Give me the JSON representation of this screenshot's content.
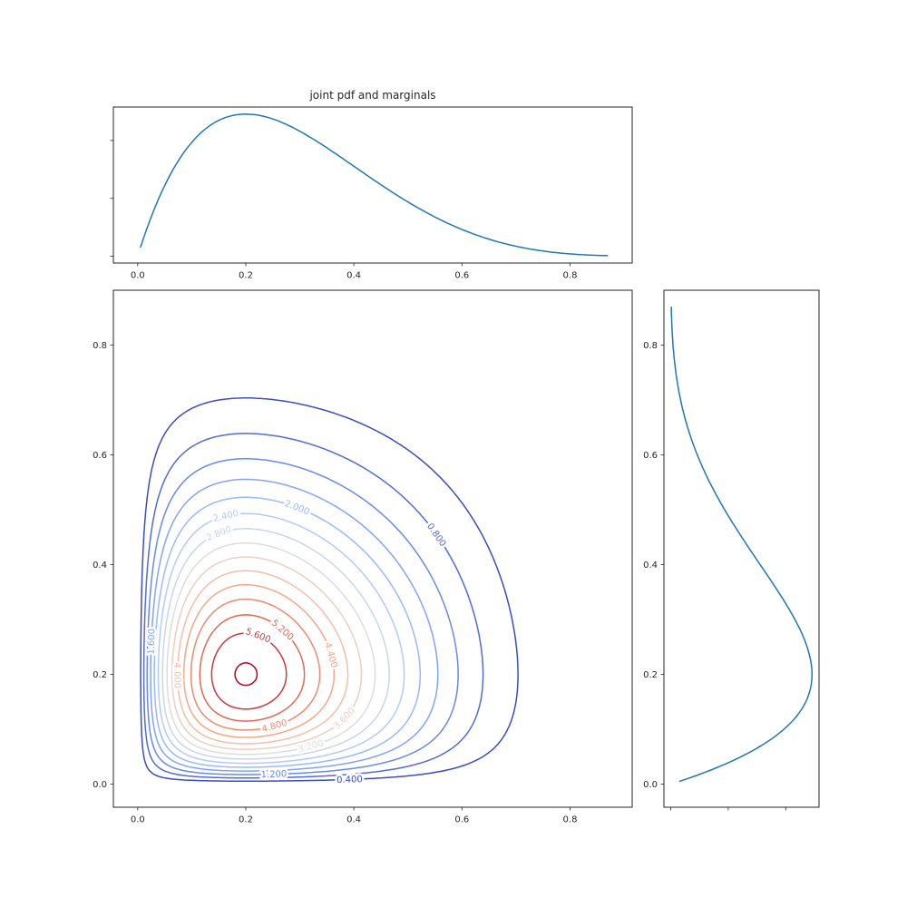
{
  "figure": {
    "background": "#ffffff",
    "text_color": "#262626",
    "frame_color": "#262626",
    "curve_color": "#1f77b4"
  },
  "chart_data": [
    {
      "id": "top_marginal",
      "type": "line",
      "role": "marginal pdf of x",
      "title": "joint pdf and marginals",
      "curve": {
        "kind": "beta_pdf",
        "a": 2,
        "b": 5,
        "norm": 30,
        "x_start": 0.005,
        "x_end": 0.87,
        "samples": 160,
        "peak_x": 0.2,
        "peak_value": 2.458
      },
      "xlim": [
        -0.045,
        0.915
      ],
      "ylim": [
        -0.12,
        2.58
      ],
      "xticks": {
        "values": [
          0.0,
          0.2,
          0.4,
          0.6,
          0.8
        ],
        "labels": [
          "0.0",
          "0.2",
          "0.4",
          "0.6",
          "0.8"
        ]
      },
      "yticks": {
        "values": [
          0,
          1,
          2
        ],
        "labels": []
      },
      "line_color": "#1f77b4",
      "grid": false,
      "legend": "none"
    },
    {
      "id": "joint_contour",
      "type": "contour",
      "role": "joint pdf f(x,y) = Beta(2,5)(x) * Beta(2,5)(y)",
      "density": {
        "kind": "product_beta",
        "a": 2,
        "b": 5,
        "norm": 30,
        "mode": [
          0.2,
          0.2
        ],
        "peak_value": 6.04
      },
      "levels": [
        0.4,
        0.8,
        1.2,
        1.6,
        2.0,
        2.4,
        2.8,
        3.2,
        3.6,
        4.0,
        4.4,
        4.8,
        5.2,
        5.6,
        6.0
      ],
      "colormap": {
        "name": "coolwarm",
        "anchors": [
          [
            0.0,
            "#3B4CC0"
          ],
          [
            0.125,
            "#6282EA"
          ],
          [
            0.25,
            "#8DB0FE"
          ],
          [
            0.375,
            "#B8D0F9"
          ],
          [
            0.5,
            "#DDDDDD"
          ],
          [
            0.625,
            "#F5C4AD"
          ],
          [
            0.75,
            "#F49A7B"
          ],
          [
            0.875,
            "#DE604D"
          ],
          [
            1.0,
            "#B40426"
          ]
        ]
      },
      "xlim": [
        -0.045,
        0.915
      ],
      "ylim": [
        -0.042,
        0.9
      ],
      "xticks": {
        "values": [
          0.0,
          0.2,
          0.4,
          0.6,
          0.8
        ],
        "labels": [
          "0.0",
          "0.2",
          "0.4",
          "0.6",
          "0.8"
        ]
      },
      "yticks": {
        "values": [
          0.0,
          0.2,
          0.4,
          0.6,
          0.8
        ],
        "labels": [
          "0.0",
          "0.2",
          "0.4",
          "0.6",
          "0.8"
        ]
      },
      "grid": false,
      "contour_labels": [
        {
          "level": 0.4,
          "text": "0.400",
          "x": 0.392,
          "y": 0.0086,
          "rot": -2
        },
        {
          "level": 0.8,
          "text": "0.800",
          "x": 0.553,
          "y": 0.4543,
          "rot": 55
        },
        {
          "level": 1.2,
          "text": "1.200",
          "x": 0.252,
          "y": 0.0182,
          "rot": -2
        },
        {
          "level": 1.6,
          "text": "1.600",
          "x": 0.0252,
          "y": 0.26,
          "rot": -88
        },
        {
          "level": 2.0,
          "text": "2.000",
          "x": 0.295,
          "y": 0.504,
          "rot": 21
        },
        {
          "level": 2.4,
          "text": "2.400",
          "x": 0.163,
          "y": 0.489,
          "rot": -13
        },
        {
          "level": 2.8,
          "text": "2.800",
          "x": 0.15,
          "y": 0.457,
          "rot": -21
        },
        {
          "level": 3.2,
          "text": "3.200",
          "x": 0.32,
          "y": 0.0693,
          "rot": -15
        },
        {
          "level": 3.6,
          "text": "3.600",
          "x": 0.382,
          "y": 0.12,
          "rot": -46
        },
        {
          "level": 4.0,
          "text": "4.000",
          "x": 0.0737,
          "y": 0.198,
          "rot": 89
        },
        {
          "level": 4.4,
          "text": "4.400",
          "x": 0.358,
          "y": 0.2352,
          "rot": 74
        },
        {
          "level": 4.8,
          "text": "4.800",
          "x": 0.253,
          "y": 0.106,
          "rot": -16
        },
        {
          "level": 5.2,
          "text": "5.200",
          "x": 0.268,
          "y": 0.281,
          "rot": 41
        },
        {
          "level": 5.6,
          "text": "5.600",
          "x": 0.223,
          "y": 0.271,
          "rot": 21
        }
      ]
    },
    {
      "id": "right_marginal",
      "type": "line",
      "role": "marginal pdf of y",
      "orientation": "vertical",
      "curve": {
        "kind": "beta_pdf",
        "a": 2,
        "b": 5,
        "norm": 30,
        "x_start": 0.005,
        "x_end": 0.87,
        "samples": 160,
        "peak_x": 0.2,
        "peak_value": 2.458
      },
      "xlim": [
        -0.12,
        2.58
      ],
      "ylim": [
        -0.042,
        0.9
      ],
      "xticks": {
        "values": [
          0,
          1,
          2
        ],
        "labels": []
      },
      "yticks": {
        "values": [
          0.0,
          0.2,
          0.4,
          0.6,
          0.8
        ],
        "labels": [
          "0.0",
          "0.2",
          "0.4",
          "0.6",
          "0.8"
        ]
      },
      "line_color": "#1f77b4",
      "grid": false,
      "legend": "none"
    }
  ]
}
